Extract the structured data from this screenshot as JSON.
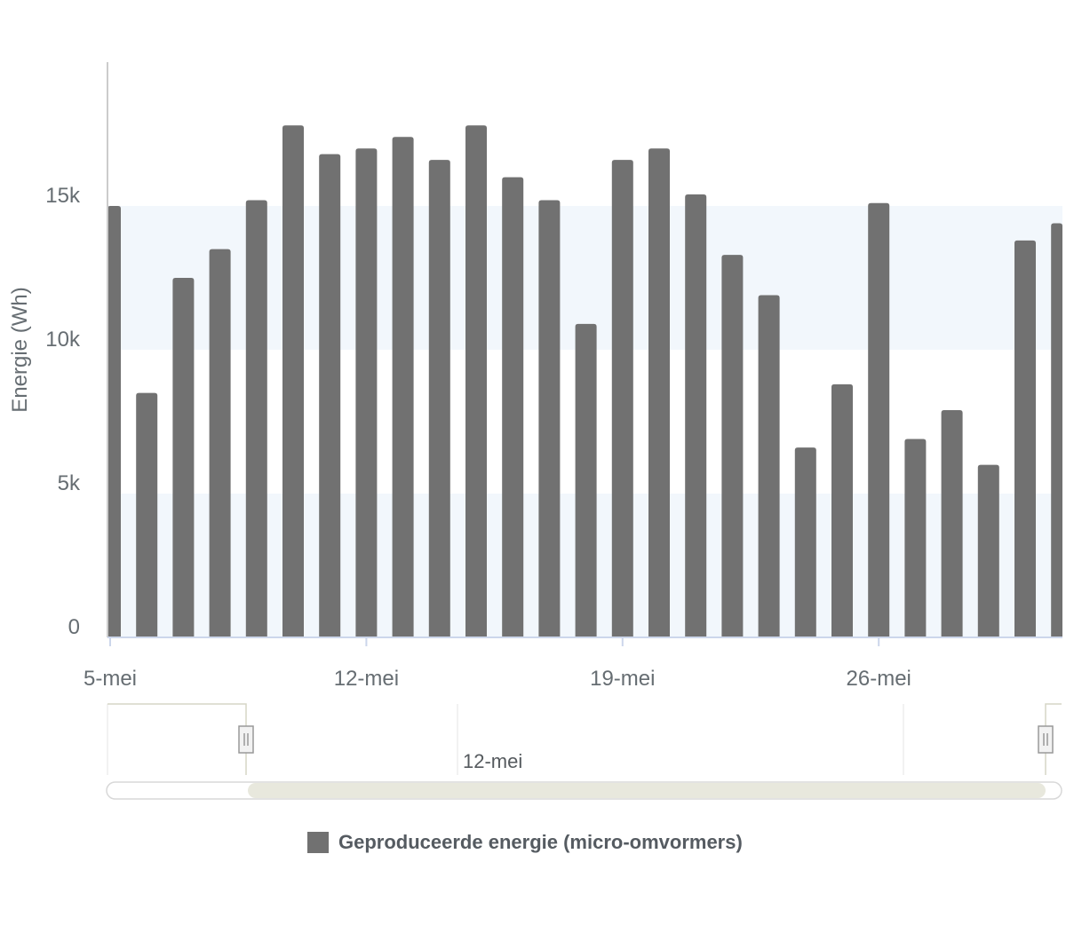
{
  "chart_data": {
    "type": "bar",
    "xlabel": "",
    "ylabel": "Energie (Wh)",
    "ylim": [
      0,
      20000
    ],
    "y_ticks": [
      0,
      5000,
      10000,
      15000
    ],
    "y_tick_labels": [
      "0",
      "5k",
      "10k",
      "15k"
    ],
    "x_tick_labels": [
      "5-mei",
      "12-mei",
      "19-mei",
      "26-mei"
    ],
    "bands": [
      [
        0,
        5000
      ],
      [
        10000,
        15000
      ]
    ],
    "categories": [
      "5-mei",
      "6-mei",
      "7-mei",
      "8-mei",
      "9-mei",
      "10-mei",
      "11-mei",
      "12-mei",
      "13-mei",
      "14-mei",
      "15-mei",
      "16-mei",
      "17-mei",
      "18-mei",
      "19-mei",
      "20-mei",
      "21-mei",
      "22-mei",
      "23-mei",
      "24-mei",
      "25-mei",
      "26-mei",
      "27-mei",
      "28-mei",
      "29-mei",
      "30-mei",
      "31-mei"
    ],
    "series": [
      {
        "name": "Geproduceerde energie (micro-omvormers)",
        "color": "#717171",
        "values": [
          15000,
          8500,
          12500,
          13500,
          15200,
          17800,
          16800,
          17000,
          17400,
          16600,
          17800,
          16000,
          15200,
          10900,
          16600,
          17000,
          15400,
          13300,
          11900,
          6600,
          8800,
          15100,
          6900,
          7900,
          6000,
          13800,
          14400
        ]
      }
    ],
    "navigator": {
      "label": "12-mei",
      "range_start": "9-mei",
      "range_end": "31-mei"
    },
    "legend_position": "bottom"
  }
}
